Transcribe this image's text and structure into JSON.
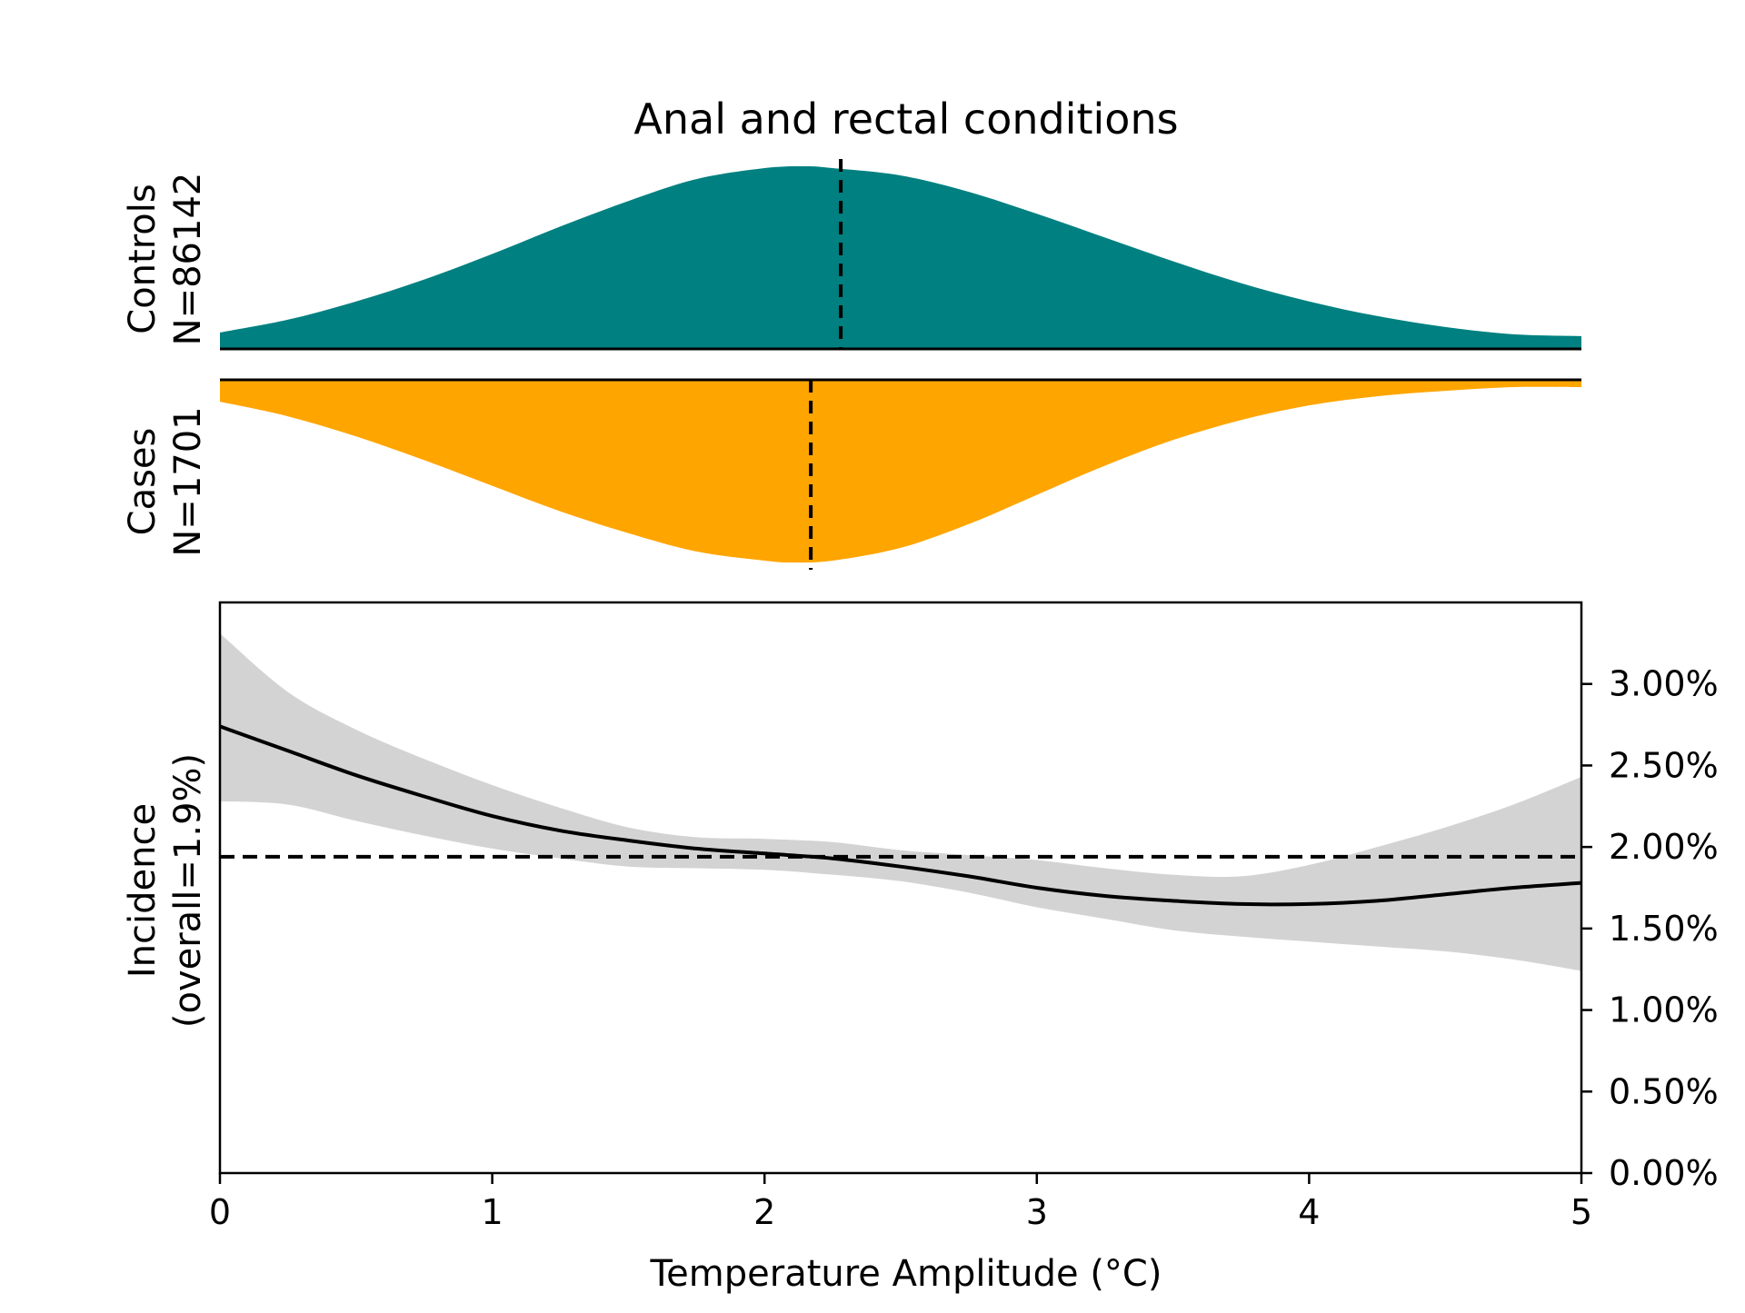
{
  "chart_data": {
    "type": "area",
    "title": "Anal and rectal conditions",
    "xlabel": "Temperature Amplitude (°C)",
    "xlim": [
      0,
      5
    ],
    "x_ticks": [
      "0",
      "1",
      "2",
      "3",
      "4",
      "5"
    ],
    "colors": {
      "controls": "#008080",
      "cases": "#FFA500",
      "ci_band": "#D3D3D3",
      "line": "#000000"
    },
    "controls": {
      "label_line1": "Controls",
      "label_line2": "N=86142",
      "x": [
        0,
        0.25,
        0.5,
        0.75,
        1.0,
        1.25,
        1.5,
        1.75,
        2.0,
        2.15,
        2.25,
        2.5,
        2.75,
        3.0,
        3.25,
        3.5,
        3.75,
        4.0,
        4.25,
        4.5,
        4.75,
        5.0
      ],
      "density": [
        0.09,
        0.16,
        0.26,
        0.38,
        0.52,
        0.67,
        0.81,
        0.93,
        0.99,
        1.0,
        0.99,
        0.95,
        0.86,
        0.74,
        0.61,
        0.48,
        0.36,
        0.26,
        0.18,
        0.12,
        0.08,
        0.07
      ],
      "median": 2.28
    },
    "cases": {
      "label_line1": "Cases",
      "label_line2": "N=1701",
      "x": [
        0,
        0.25,
        0.5,
        0.75,
        1.0,
        1.25,
        1.5,
        1.75,
        2.0,
        2.1,
        2.25,
        2.5,
        2.75,
        3.0,
        3.25,
        3.5,
        3.75,
        4.0,
        4.25,
        4.5,
        4.75,
        5.0
      ],
      "density": [
        0.12,
        0.2,
        0.31,
        0.44,
        0.58,
        0.72,
        0.84,
        0.94,
        0.99,
        1.0,
        0.99,
        0.92,
        0.79,
        0.63,
        0.47,
        0.33,
        0.22,
        0.14,
        0.09,
        0.06,
        0.04,
        0.04
      ],
      "median": 2.17
    },
    "incidence": {
      "ylabel_line1": "Incidence",
      "ylabel_line2": "(overall=1.9%)",
      "ylim": [
        0,
        3.5
      ],
      "y_ticks": [
        0,
        0.5,
        1.0,
        1.5,
        2.0,
        2.5,
        3.0
      ],
      "y_tick_labels": [
        "0.00%",
        "0.50%",
        "1.00%",
        "1.50%",
        "2.00%",
        "2.50%",
        "3.00%"
      ],
      "overall": 1.94,
      "x": [
        0,
        0.25,
        0.5,
        0.75,
        1.0,
        1.25,
        1.5,
        1.75,
        2.0,
        2.25,
        2.5,
        2.75,
        3.0,
        3.25,
        3.5,
        3.75,
        4.0,
        4.25,
        4.5,
        4.75,
        5.0
      ],
      "y": [
        2.74,
        2.59,
        2.44,
        2.31,
        2.19,
        2.1,
        2.04,
        1.99,
        1.96,
        1.93,
        1.88,
        1.82,
        1.75,
        1.7,
        1.67,
        1.65,
        1.65,
        1.67,
        1.71,
        1.75,
        1.78
      ],
      "ci_upper": [
        3.31,
        2.95,
        2.72,
        2.54,
        2.38,
        2.24,
        2.12,
        2.06,
        2.05,
        2.03,
        1.98,
        1.95,
        1.92,
        1.87,
        1.83,
        1.82,
        1.89,
        2.0,
        2.12,
        2.26,
        2.43
      ],
      "ci_lower": [
        2.28,
        2.26,
        2.16,
        2.07,
        1.99,
        1.93,
        1.88,
        1.87,
        1.86,
        1.83,
        1.79,
        1.72,
        1.63,
        1.56,
        1.49,
        1.45,
        1.42,
        1.39,
        1.36,
        1.31,
        1.24
      ]
    }
  }
}
